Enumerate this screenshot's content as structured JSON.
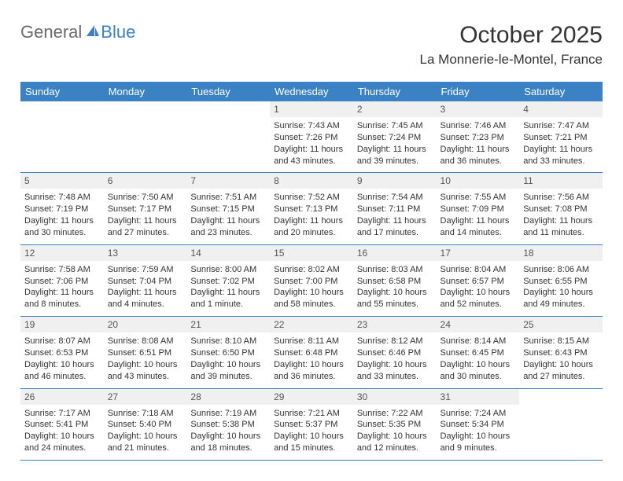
{
  "brand": {
    "part1": "General",
    "part2": "Blue"
  },
  "title": "October 2025",
  "location": "La Monnerie-le-Montel, France",
  "colors": {
    "header_bg": "#3b82c4",
    "header_text": "#ffffff",
    "daynum_bg": "#f0f0f0",
    "daynum_text": "#555555",
    "body_text": "#333333",
    "border": "#3b82c4",
    "brand_gray": "#6b6b6b",
    "brand_blue": "#3b82c4"
  },
  "columns": [
    "Sunday",
    "Monday",
    "Tuesday",
    "Wednesday",
    "Thursday",
    "Friday",
    "Saturday"
  ],
  "weeks": [
    [
      null,
      null,
      null,
      {
        "d": "1",
        "sr": "7:43 AM",
        "ss": "7:26 PM",
        "dl": "11 hours and 43 minutes."
      },
      {
        "d": "2",
        "sr": "7:45 AM",
        "ss": "7:24 PM",
        "dl": "11 hours and 39 minutes."
      },
      {
        "d": "3",
        "sr": "7:46 AM",
        "ss": "7:23 PM",
        "dl": "11 hours and 36 minutes."
      },
      {
        "d": "4",
        "sr": "7:47 AM",
        "ss": "7:21 PM",
        "dl": "11 hours and 33 minutes."
      }
    ],
    [
      {
        "d": "5",
        "sr": "7:48 AM",
        "ss": "7:19 PM",
        "dl": "11 hours and 30 minutes."
      },
      {
        "d": "6",
        "sr": "7:50 AM",
        "ss": "7:17 PM",
        "dl": "11 hours and 27 minutes."
      },
      {
        "d": "7",
        "sr": "7:51 AM",
        "ss": "7:15 PM",
        "dl": "11 hours and 23 minutes."
      },
      {
        "d": "8",
        "sr": "7:52 AM",
        "ss": "7:13 PM",
        "dl": "11 hours and 20 minutes."
      },
      {
        "d": "9",
        "sr": "7:54 AM",
        "ss": "7:11 PM",
        "dl": "11 hours and 17 minutes."
      },
      {
        "d": "10",
        "sr": "7:55 AM",
        "ss": "7:09 PM",
        "dl": "11 hours and 14 minutes."
      },
      {
        "d": "11",
        "sr": "7:56 AM",
        "ss": "7:08 PM",
        "dl": "11 hours and 11 minutes."
      }
    ],
    [
      {
        "d": "12",
        "sr": "7:58 AM",
        "ss": "7:06 PM",
        "dl": "11 hours and 8 minutes."
      },
      {
        "d": "13",
        "sr": "7:59 AM",
        "ss": "7:04 PM",
        "dl": "11 hours and 4 minutes."
      },
      {
        "d": "14",
        "sr": "8:00 AM",
        "ss": "7:02 PM",
        "dl": "11 hours and 1 minute."
      },
      {
        "d": "15",
        "sr": "8:02 AM",
        "ss": "7:00 PM",
        "dl": "10 hours and 58 minutes."
      },
      {
        "d": "16",
        "sr": "8:03 AM",
        "ss": "6:58 PM",
        "dl": "10 hours and 55 minutes."
      },
      {
        "d": "17",
        "sr": "8:04 AM",
        "ss": "6:57 PM",
        "dl": "10 hours and 52 minutes."
      },
      {
        "d": "18",
        "sr": "8:06 AM",
        "ss": "6:55 PM",
        "dl": "10 hours and 49 minutes."
      }
    ],
    [
      {
        "d": "19",
        "sr": "8:07 AM",
        "ss": "6:53 PM",
        "dl": "10 hours and 46 minutes."
      },
      {
        "d": "20",
        "sr": "8:08 AM",
        "ss": "6:51 PM",
        "dl": "10 hours and 43 minutes."
      },
      {
        "d": "21",
        "sr": "8:10 AM",
        "ss": "6:50 PM",
        "dl": "10 hours and 39 minutes."
      },
      {
        "d": "22",
        "sr": "8:11 AM",
        "ss": "6:48 PM",
        "dl": "10 hours and 36 minutes."
      },
      {
        "d": "23",
        "sr": "8:12 AM",
        "ss": "6:46 PM",
        "dl": "10 hours and 33 minutes."
      },
      {
        "d": "24",
        "sr": "8:14 AM",
        "ss": "6:45 PM",
        "dl": "10 hours and 30 minutes."
      },
      {
        "d": "25",
        "sr": "8:15 AM",
        "ss": "6:43 PM",
        "dl": "10 hours and 27 minutes."
      }
    ],
    [
      {
        "d": "26",
        "sr": "7:17 AM",
        "ss": "5:41 PM",
        "dl": "10 hours and 24 minutes."
      },
      {
        "d": "27",
        "sr": "7:18 AM",
        "ss": "5:40 PM",
        "dl": "10 hours and 21 minutes."
      },
      {
        "d": "28",
        "sr": "7:19 AM",
        "ss": "5:38 PM",
        "dl": "10 hours and 18 minutes."
      },
      {
        "d": "29",
        "sr": "7:21 AM",
        "ss": "5:37 PM",
        "dl": "10 hours and 15 minutes."
      },
      {
        "d": "30",
        "sr": "7:22 AM",
        "ss": "5:35 PM",
        "dl": "10 hours and 12 minutes."
      },
      {
        "d": "31",
        "sr": "7:24 AM",
        "ss": "5:34 PM",
        "dl": "10 hours and 9 minutes."
      },
      null
    ]
  ],
  "labels": {
    "sunrise": "Sunrise:",
    "sunset": "Sunset:",
    "daylight": "Daylight:"
  }
}
